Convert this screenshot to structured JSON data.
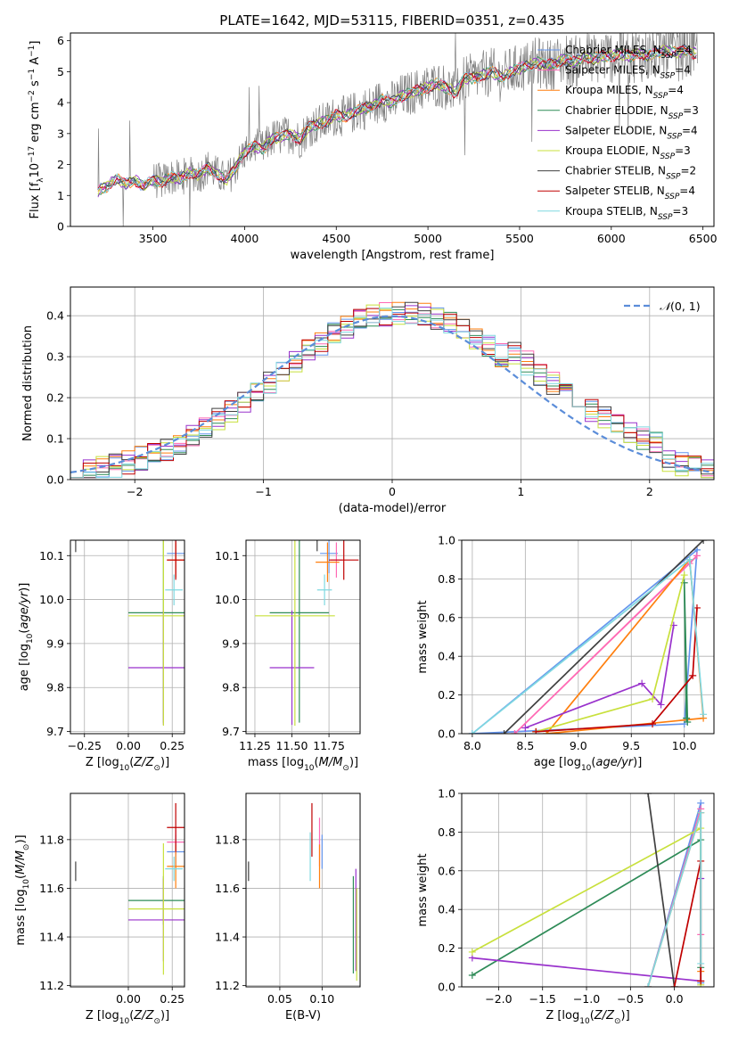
{
  "colors": {
    "Chabrier MILES": "#6495ed",
    "Salpeter MILES": "#ff69b4",
    "Kroupa MILES": "#ff7f0e",
    "Chabrier ELODIE": "#2e8b57",
    "Salpeter ELODIE": "#9932cc",
    "Kroupa ELODIE": "#c8e03c",
    "Chabrier STELIB": "#404040",
    "Salpeter STELIB": "#c00000",
    "Kroupa STELIB": "#7fd8e0",
    "data": "#808080",
    "normal": "#5b8dd9"
  },
  "chart_data": [
    {
      "id": "spectrum",
      "type": "line",
      "title": "PLATE=1642, MJD=53115, FIBERID=0351, z=0.435",
      "xlabel": "wavelength [Angstrom, rest frame]",
      "ylabel_parts": [
        "Flux [f",
        "λ",
        "10",
        "−17",
        " erg cm",
        "−2",
        " s",
        "−1",
        " A",
        "−1",
        "]"
      ],
      "xlim": [
        3050,
        6560
      ],
      "ylim": [
        0,
        6.25
      ],
      "xticks": [
        3500,
        4000,
        4500,
        5000,
        5500,
        6000,
        6500
      ],
      "yticks": [
        0,
        1,
        2,
        3,
        4,
        5,
        6
      ],
      "legend_position": "top-right",
      "legend": [
        "Chabrier MILES, N_SSP=4",
        "Salpeter MILES, N_SSP=4",
        "Kroupa MILES, N_SSP=4",
        "Chabrier ELODIE, N_SSP=3",
        "Salpeter ELODIE, N_SSP=4",
        "Kroupa ELODIE, N_SSP=3",
        "Chabrier STELIB, N_SSP=2",
        "Salpeter STELIB, N_SSP=4",
        "Kroupa STELIB, N_SSP=3"
      ],
      "continuum": [
        [
          3190,
          0.0
        ],
        [
          3200,
          1.15
        ],
        [
          3250,
          1.3
        ],
        [
          3300,
          1.55
        ],
        [
          3350,
          1.35
        ],
        [
          3400,
          1.5
        ],
        [
          3450,
          1.3
        ],
        [
          3500,
          1.5
        ],
        [
          3550,
          1.45
        ],
        [
          3600,
          1.6
        ],
        [
          3650,
          1.55
        ],
        [
          3700,
          1.75
        ],
        [
          3750,
          1.65
        ],
        [
          3800,
          1.9
        ],
        [
          3850,
          1.7
        ],
        [
          3900,
          1.5
        ],
        [
          3950,
          1.9
        ],
        [
          4000,
          2.4
        ],
        [
          4050,
          2.6
        ],
        [
          4100,
          2.5
        ],
        [
          4150,
          2.85
        ],
        [
          4200,
          2.9
        ],
        [
          4250,
          3.0
        ],
        [
          4300,
          2.8
        ],
        [
          4350,
          3.2
        ],
        [
          4400,
          3.3
        ],
        [
          4450,
          3.4
        ],
        [
          4500,
          3.6
        ],
        [
          4550,
          3.55
        ],
        [
          4600,
          3.7
        ],
        [
          4650,
          3.8
        ],
        [
          4700,
          3.9
        ],
        [
          4750,
          4.1
        ],
        [
          4800,
          4.0
        ],
        [
          4850,
          4.2
        ],
        [
          4900,
          4.3
        ],
        [
          4950,
          4.4
        ],
        [
          5000,
          4.5
        ],
        [
          5050,
          4.6
        ],
        [
          5100,
          4.5
        ],
        [
          5150,
          4.3
        ],
        [
          5200,
          4.8
        ],
        [
          5250,
          4.8
        ],
        [
          5300,
          4.9
        ],
        [
          5350,
          5.0
        ],
        [
          5400,
          4.8
        ],
        [
          5450,
          5.0
        ],
        [
          5500,
          5.1
        ],
        [
          5550,
          5.2
        ],
        [
          5600,
          5.3
        ],
        [
          5650,
          5.2
        ],
        [
          5700,
          5.3
        ],
        [
          5750,
          5.4
        ],
        [
          5800,
          5.3
        ],
        [
          5850,
          5.5
        ],
        [
          5900,
          5.4
        ],
        [
          5950,
          5.5
        ],
        [
          6000,
          5.5
        ],
        [
          6050,
          5.6
        ],
        [
          6100,
          5.5
        ],
        [
          6150,
          5.6
        ],
        [
          6200,
          5.5
        ],
        [
          6250,
          5.6
        ],
        [
          6300,
          5.7
        ],
        [
          6350,
          5.6
        ],
        [
          6400,
          5.7
        ],
        [
          6450,
          5.6
        ]
      ]
    },
    {
      "id": "residuals",
      "type": "step",
      "xlabel": "(data-model)/error",
      "ylabel": "Normed distribution",
      "xlim": [
        -2.5,
        2.5
      ],
      "ylim": [
        0,
        0.47
      ],
      "xticks": [
        -2,
        -1,
        0,
        1,
        2
      ],
      "yticks": [
        0,
        0.1,
        0.2,
        0.3,
        0.4
      ],
      "legend_position": "top-right",
      "legend": [
        "N(0,1)"
      ],
      "bin_width": 0.1
    },
    {
      "id": "age-vs-Z",
      "type": "errorbar",
      "xlabel": "Z [log10(Z/Z⊙)]",
      "ylabel": "age  [log10(age/yr)]",
      "xlim": [
        -0.33,
        0.32
      ],
      "ylim": [
        9.695,
        10.135
      ],
      "xticks": [
        -0.25,
        0.0,
        0.25
      ],
      "yticks": [
        9.7,
        9.8,
        9.9,
        10.0,
        10.1
      ],
      "points": [
        {
          "model": "Chabrier MILES",
          "x": 0.27,
          "xerr": 0.05,
          "y": 10.105,
          "yerr": 0.045
        },
        {
          "model": "Salpeter MILES",
          "x": 0.27,
          "xerr": 0.05,
          "y": 10.09,
          "yerr": 0.04
        },
        {
          "model": "Kroupa MILES",
          "x": 0.27,
          "xerr": 0.05,
          "y": 10.09,
          "yerr": 0.04
        },
        {
          "model": "Chabrier ELODIE",
          "x": 0.2,
          "xerr": 0.2,
          "y": 9.97,
          "yerr": 0.25
        },
        {
          "model": "Salpeter ELODIE",
          "x": 0.2,
          "xerr": 0.2,
          "y": 9.845,
          "yerr": 0.13
        },
        {
          "model": "Kroupa ELODIE",
          "x": 0.2,
          "xerr": 0.2,
          "y": 9.963,
          "yerr": 0.25
        },
        {
          "model": "Chabrier STELIB",
          "x": -0.3,
          "xerr": 0.0,
          "y": 10.143,
          "yerr": 0.035
        },
        {
          "model": "Salpeter STELIB",
          "x": 0.27,
          "xerr": 0.05,
          "y": 10.09,
          "yerr": 0.045
        },
        {
          "model": "Kroupa STELIB",
          "x": 0.26,
          "xerr": 0.05,
          "y": 10.022,
          "yerr": 0.035
        }
      ]
    },
    {
      "id": "age-vs-mass",
      "type": "errorbar",
      "xlabel": "mass [log10(M/M⊙)]",
      "xlim": [
        11.19,
        11.96
      ],
      "ylim": [
        9.695,
        10.135
      ],
      "xticks": [
        11.25,
        11.5,
        11.75
      ],
      "yticks": [
        9.7,
        9.8,
        9.9,
        10.0,
        10.1
      ],
      "points": [
        {
          "model": "Chabrier MILES",
          "x": 11.75,
          "xerr": 0.06,
          "y": 10.105,
          "yerr": 0.045
        },
        {
          "model": "Salpeter MILES",
          "x": 11.8,
          "xerr": 0.04,
          "y": 10.09,
          "yerr": 0.04
        },
        {
          "model": "Kroupa MILES",
          "x": 11.74,
          "xerr": 0.08,
          "y": 10.085,
          "yerr": 0.045
        },
        {
          "model": "Chabrier ELODIE",
          "x": 11.55,
          "xerr": 0.2,
          "y": 9.97,
          "yerr": 0.25
        },
        {
          "model": "Salpeter ELODIE",
          "x": 11.5,
          "xerr": 0.15,
          "y": 9.845,
          "yerr": 0.13
        },
        {
          "model": "Kroupa ELODIE",
          "x": 11.52,
          "xerr": 0.27,
          "y": 9.963,
          "yerr": 0.25
        },
        {
          "model": "Chabrier STELIB",
          "x": 11.67,
          "xerr": 0.03,
          "y": 10.145,
          "yerr": 0.035
        },
        {
          "model": "Salpeter STELIB",
          "x": 11.85,
          "xerr": 0.1,
          "y": 10.09,
          "yerr": 0.045
        },
        {
          "model": "Kroupa STELIB",
          "x": 11.72,
          "xerr": 0.05,
          "y": 10.022,
          "yerr": 0.035
        }
      ]
    },
    {
      "id": "weight-vs-age",
      "type": "line",
      "xlabel": "age  [log10(age/yr)]",
      "ylabel": "mass weight",
      "xlim": [
        7.9,
        10.28
      ],
      "ylim": [
        0,
        1
      ],
      "xticks": [
        8.0,
        8.5,
        9.0,
        9.5,
        10.0
      ],
      "yticks": [
        0.0,
        0.2,
        0.4,
        0.6,
        0.8,
        1.0
      ],
      "series": [
        {
          "model": "Chabrier MILES",
          "points": [
            [
              8.0,
              0.0
            ],
            [
              10.0,
              0.05
            ],
            [
              10.12,
              0.95
            ],
            [
              8.0,
              0.0
            ]
          ]
        },
        {
          "model": "Salpeter MILES",
          "points": [
            [
              8.4,
              0.0
            ],
            [
              10.05,
              0.88
            ],
            [
              10.12,
              0.92
            ],
            [
              8.4,
              0.0
            ]
          ]
        },
        {
          "model": "Kroupa MILES",
          "points": [
            [
              8.7,
              0.0
            ],
            [
              10.05,
              0.9
            ],
            [
              10.18,
              0.08
            ],
            [
              8.7,
              0.0
            ]
          ]
        },
        {
          "model": "Chabrier ELODIE",
          "points": [
            [
              10.02,
              0.08
            ],
            [
              10.0,
              0.78
            ],
            [
              10.03,
              0.06
            ]
          ]
        },
        {
          "model": "Salpeter ELODIE",
          "points": [
            [
              8.5,
              0.03
            ],
            [
              9.6,
              0.26
            ],
            [
              9.78,
              0.15
            ],
            [
              9.9,
              0.56
            ]
          ]
        },
        {
          "model": "Kroupa ELODIE",
          "points": [
            [
              8.6,
              0.01
            ],
            [
              9.7,
              0.18
            ],
            [
              10.0,
              0.82
            ]
          ]
        },
        {
          "model": "Chabrier STELIB",
          "points": [
            [
              8.3,
              0.0
            ],
            [
              10.18,
              1.0
            ]
          ]
        },
        {
          "model": "Salpeter STELIB",
          "points": [
            [
              8.6,
              0.01
            ],
            [
              9.7,
              0.05
            ],
            [
              10.08,
              0.3
            ],
            [
              10.12,
              0.65
            ]
          ]
        },
        {
          "model": "Kroupa STELIB",
          "points": [
            [
              8.0,
              0.0
            ],
            [
              10.05,
              0.9
            ],
            [
              10.18,
              0.1
            ]
          ]
        }
      ]
    },
    {
      "id": "mass-vs-Z",
      "type": "errorbar",
      "xlabel": "Z [log10(Z/Z⊙)]",
      "ylabel": "mass [log10(M/M⊙)]",
      "xlim": [
        -0.33,
        0.32
      ],
      "ylim": [
        11.195,
        11.99
      ],
      "xticks": [
        0.0,
        0.25
      ],
      "yticks": [
        11.2,
        11.4,
        11.6,
        11.8
      ],
      "points": [
        {
          "model": "Chabrier MILES",
          "x": 0.27,
          "xerr": 0.05,
          "y": 11.75,
          "yerr": 0.07
        },
        {
          "model": "Salpeter MILES",
          "x": 0.27,
          "xerr": 0.05,
          "y": 11.79,
          "yerr": 0.05
        },
        {
          "model": "Kroupa MILES",
          "x": 0.27,
          "xerr": 0.05,
          "y": 11.69,
          "yerr": 0.09
        },
        {
          "model": "Chabrier ELODIE",
          "x": 0.2,
          "xerr": 0.2,
          "y": 11.55,
          "yerr": 0.1
        },
        {
          "model": "Salpeter ELODIE",
          "x": 0.2,
          "xerr": 0.2,
          "y": 11.47,
          "yerr": 0.17
        },
        {
          "model": "Kroupa ELODIE",
          "x": 0.2,
          "xerr": 0.2,
          "y": 11.515,
          "yerr": 0.27
        },
        {
          "model": "Chabrier STELIB",
          "x": -0.3,
          "xerr": 0.0,
          "y": 11.67,
          "yerr": 0.04
        },
        {
          "model": "Salpeter STELIB",
          "x": 0.27,
          "xerr": 0.05,
          "y": 11.85,
          "yerr": 0.1
        },
        {
          "model": "Kroupa STELIB",
          "x": 0.26,
          "xerr": 0.05,
          "y": 11.68,
          "yerr": 0.05
        }
      ]
    },
    {
      "id": "mass-vs-ebv",
      "type": "errorbar",
      "xlabel": "E(B-V)",
      "xlim": [
        0.01,
        0.145
      ],
      "ylim": [
        11.195,
        11.99
      ],
      "xticks": [
        0.05,
        0.1
      ],
      "yticks": [
        11.2,
        11.4,
        11.6,
        11.8
      ],
      "points": [
        {
          "model": "Chabrier MILES",
          "x": 0.1,
          "xerr": 0.0,
          "y": 11.75,
          "yerr": 0.07
        },
        {
          "model": "Salpeter MILES",
          "x": 0.097,
          "xerr": 0.0,
          "y": 11.79,
          "yerr": 0.1
        },
        {
          "model": "Kroupa MILES",
          "x": 0.097,
          "xerr": 0.0,
          "y": 11.69,
          "yerr": 0.09
        },
        {
          "model": "Chabrier ELODIE",
          "x": 0.137,
          "xerr": 0.0,
          "y": 11.45,
          "yerr": 0.2
        },
        {
          "model": "Salpeter ELODIE",
          "x": 0.14,
          "xerr": 0.0,
          "y": 11.47,
          "yerr": 0.21
        },
        {
          "model": "Kroupa ELODIE",
          "x": 0.141,
          "xerr": 0.0,
          "y": 11.41,
          "yerr": 0.19
        },
        {
          "model": "Chabrier STELIB",
          "x": 0.013,
          "xerr": 0.0,
          "y": 11.67,
          "yerr": 0.04
        },
        {
          "model": "Salpeter STELIB",
          "x": 0.088,
          "xerr": 0.0,
          "y": 11.84,
          "yerr": 0.11
        },
        {
          "model": "Kroupa STELIB",
          "x": 0.086,
          "xerr": 0.0,
          "y": 11.73,
          "yerr": 0.1
        }
      ]
    },
    {
      "id": "weight-vs-Z",
      "type": "line",
      "xlabel": "Z [log10(Z/Z⊙)]",
      "ylabel": "mass weight",
      "xlim": [
        -2.42,
        0.45
      ],
      "ylim": [
        0,
        1
      ],
      "xticks": [
        -2.0,
        -1.5,
        -1.0,
        -0.5,
        0.0
      ],
      "yticks": [
        0.0,
        0.2,
        0.4,
        0.6,
        0.8,
        1.0
      ],
      "series": [
        {
          "model": "Chabrier MILES",
          "points": [
            [
              -0.3,
              0.0
            ],
            [
              0.3,
              0.95
            ],
            [
              0.3,
              0.02
            ]
          ]
        },
        {
          "model": "Salpeter MILES",
          "points": [
            [
              -0.3,
              0.0
            ],
            [
              0.3,
              0.92
            ],
            [
              0.3,
              0.27
            ]
          ]
        },
        {
          "model": "Kroupa MILES",
          "points": [
            [
              -0.3,
              0.0
            ],
            [
              0.3,
              0.9
            ],
            [
              0.3,
              0.08
            ]
          ]
        },
        {
          "model": "Chabrier ELODIE",
          "points": [
            [
              -2.3,
              0.06
            ],
            [
              0.3,
              0.76
            ],
            [
              0.3,
              0.1
            ]
          ]
        },
        {
          "model": "Salpeter ELODIE",
          "points": [
            [
              -2.3,
              0.15
            ],
            [
              0.3,
              0.03
            ],
            [
              0.3,
              0.56
            ]
          ]
        },
        {
          "model": "Kroupa ELODIE",
          "points": [
            [
              -2.3,
              0.18
            ],
            [
              0.3,
              0.82
            ],
            [
              0.3,
              0.01
            ]
          ]
        },
        {
          "model": "Chabrier STELIB",
          "points": [
            [
              -0.3,
              1.0
            ],
            [
              0.0,
              0.0
            ]
          ]
        },
        {
          "model": "Salpeter STELIB",
          "points": [
            [
              0.0,
              0.0
            ],
            [
              0.3,
              0.65
            ],
            [
              0.3,
              0.03
            ]
          ]
        },
        {
          "model": "Kroupa STELIB",
          "points": [
            [
              -0.3,
              0.0
            ],
            [
              0.3,
              0.9
            ],
            [
              0.3,
              0.12
            ]
          ]
        }
      ]
    }
  ]
}
